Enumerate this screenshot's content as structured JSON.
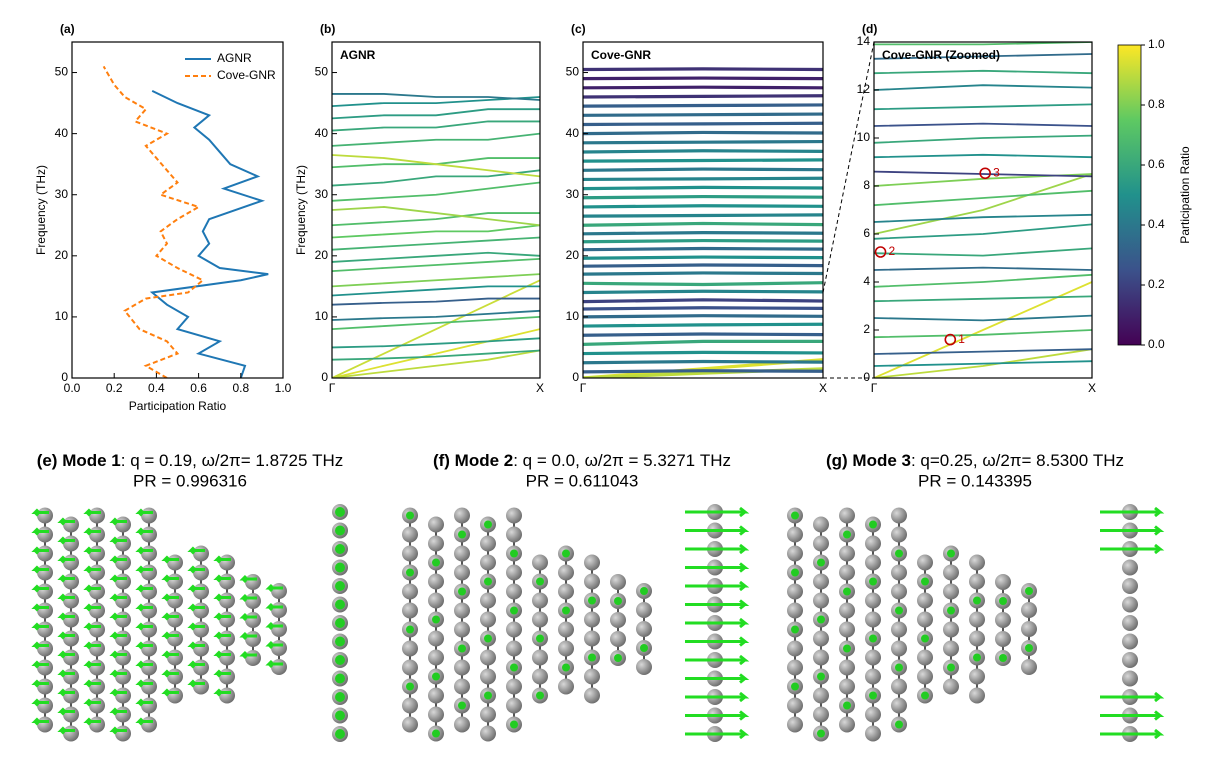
{
  "chart_data": [
    {
      "type": "line",
      "panel": "(a)",
      "xlabel": "Participation Ratio",
      "ylabel": "Frequency (THz)",
      "xlim": [
        0,
        1
      ],
      "xticks": [
        {
          "value": 0,
          "label": "0.0"
        },
        0.2,
        0.4,
        0.6,
        0.8,
        {
          "value": 1,
          "label": "1.0"
        }
      ],
      "ylim": [
        0,
        55
      ],
      "yticks": [
        0,
        10,
        20,
        30,
        40,
        50
      ],
      "legend": "upper right",
      "series": [
        {
          "name": "AGNR",
          "color": "#1f77b4",
          "linestyle": "solid",
          "x": [
            0.8,
            0.82,
            0.6,
            0.7,
            0.5,
            0.55,
            0.45,
            0.38,
            0.8,
            0.93,
            0.7,
            0.6,
            0.65,
            0.62,
            0.65,
            0.9,
            0.72,
            0.88,
            0.75,
            0.7,
            0.65,
            0.58,
            0.65,
            0.5,
            0.38
          ],
          "values": [
            0,
            2,
            4,
            6,
            8,
            10,
            12,
            14,
            16,
            17,
            18,
            20,
            22,
            24,
            26,
            29,
            31,
            33,
            35,
            37,
            39,
            41,
            43,
            45,
            47
          ]
        },
        {
          "name": "Cove-GNR",
          "color": "#ff7f0e",
          "linestyle": "dashed",
          "x": [
            0.45,
            0.35,
            0.5,
            0.45,
            0.32,
            0.25,
            0.35,
            0.55,
            0.62,
            0.5,
            0.4,
            0.45,
            0.42,
            0.5,
            0.6,
            0.42,
            0.5,
            0.45,
            0.4,
            0.35,
            0.45,
            0.3,
            0.35,
            0.25,
            0.2,
            0.15
          ],
          "values": [
            0,
            2,
            4,
            6,
            8,
            11,
            13,
            14,
            16,
            18,
            20,
            22,
            24,
            26,
            28,
            30,
            32,
            34,
            36,
            38,
            40,
            42,
            44,
            46,
            48,
            51
          ]
        }
      ]
    },
    {
      "type": "bands",
      "panel": "(b)",
      "title": "AGNR",
      "ylabel": "Frequency (THz)",
      "xlim": [
        0,
        1
      ],
      "xticks": [
        {
          "value": 0,
          "label": "Γ"
        },
        {
          "value": 1,
          "label": "X"
        }
      ],
      "ylim": [
        0,
        55
      ],
      "yticks": [
        0,
        10,
        20,
        30,
        40,
        50
      ],
      "x": [
        0,
        0.25,
        0.5,
        0.75,
        1
      ],
      "series": [
        {
          "pr": 0.95,
          "values": [
            0,
            2,
            4,
            6,
            8
          ]
        },
        {
          "pr": 0.9,
          "values": [
            0,
            1,
            2,
            3,
            4.5
          ]
        },
        {
          "pr": 0.92,
          "values": [
            0,
            4,
            8,
            12,
            16
          ]
        },
        {
          "pr": 0.6,
          "values": [
            3,
            3.2,
            3.5,
            4,
            4.5
          ]
        },
        {
          "pr": 0.55,
          "values": [
            5,
            5.2,
            5.6,
            6,
            6.5
          ]
        },
        {
          "pr": 0.7,
          "values": [
            8,
            8.5,
            9,
            9.5,
            10
          ]
        },
        {
          "pr": 0.4,
          "values": [
            9.5,
            9.8,
            10,
            10.5,
            11
          ]
        },
        {
          "pr": 0.3,
          "values": [
            12,
            12.3,
            12.5,
            13,
            13
          ]
        },
        {
          "pr": 0.5,
          "values": [
            13.5,
            14,
            14.5,
            15,
            15
          ]
        },
        {
          "pr": 0.8,
          "values": [
            15,
            15.5,
            16,
            16.5,
            17
          ]
        },
        {
          "pr": 0.7,
          "values": [
            17.5,
            18,
            18.5,
            19,
            19.5
          ]
        },
        {
          "pr": 0.6,
          "values": [
            19,
            19.5,
            20,
            20.5,
            20
          ]
        },
        {
          "pr": 0.65,
          "values": [
            21,
            21.5,
            22,
            22.5,
            23
          ]
        },
        {
          "pr": 0.75,
          "values": [
            23,
            23.5,
            24,
            24,
            25
          ]
        },
        {
          "pr": 0.7,
          "values": [
            25,
            25.5,
            26,
            27,
            27
          ]
        },
        {
          "pr": 0.85,
          "values": [
            27.5,
            28,
            27,
            26,
            25
          ]
        },
        {
          "pr": 0.7,
          "values": [
            29,
            29.5,
            30,
            31,
            32
          ]
        },
        {
          "pr": 0.6,
          "values": [
            31.5,
            32,
            33,
            33,
            34
          ]
        },
        {
          "pr": 0.7,
          "values": [
            34.5,
            35,
            35,
            36,
            36
          ]
        },
        {
          "pr": 0.9,
          "values": [
            36.5,
            36,
            35,
            34,
            33
          ]
        },
        {
          "pr": 0.65,
          "values": [
            38,
            38.5,
            39,
            39,
            40
          ]
        },
        {
          "pr": 0.6,
          "values": [
            40.5,
            41,
            41,
            42,
            42
          ]
        },
        {
          "pr": 0.55,
          "values": [
            42.5,
            43,
            43,
            44,
            44
          ]
        },
        {
          "pr": 0.5,
          "values": [
            44.5,
            45,
            45,
            45.5,
            46
          ]
        },
        {
          "pr": 0.4,
          "values": [
            46.5,
            46.5,
            46,
            46,
            45.5
          ]
        }
      ]
    },
    {
      "type": "bands",
      "panel": "(c)",
      "title": "Cove-GNR",
      "xlim": [
        0,
        1
      ],
      "xticks": [
        {
          "value": 0,
          "label": "Γ"
        },
        {
          "value": 1,
          "label": "X"
        }
      ],
      "ylim": [
        0,
        55
      ],
      "yticks": [
        0,
        10,
        20,
        30,
        40,
        50
      ],
      "x": [
        0,
        0.5,
        1
      ],
      "series": [
        {
          "pr": 0.95,
          "values": [
            0,
            1.5,
            3
          ]
        },
        {
          "pr": 0.9,
          "values": [
            0,
            0.8,
            1.5
          ]
        },
        {
          "pr": 0.3,
          "values": [
            1,
            1.2,
            1.1
          ]
        },
        {
          "pr": 0.4,
          "values": [
            2.5,
            2.7,
            2.6
          ]
        },
        {
          "pr": 0.5,
          "values": [
            4,
            4.2,
            4.1
          ]
        },
        {
          "pr": 0.6,
          "values": [
            5.5,
            6,
            6
          ]
        },
        {
          "pr": 0.3,
          "values": [
            7,
            7.2,
            7.1
          ]
        },
        {
          "pr": 0.5,
          "values": [
            8.5,
            8.7,
            8.8
          ]
        },
        {
          "pr": 0.35,
          "values": [
            10,
            10.2,
            10.1
          ]
        },
        {
          "pr": 0.25,
          "values": [
            11.3,
            11.5,
            11.4
          ]
        },
        {
          "pr": 0.2,
          "values": [
            12.5,
            12.8,
            12.6
          ]
        },
        {
          "pr": 0.45,
          "values": [
            14,
            14.2,
            14.1
          ]
        },
        {
          "pr": 0.6,
          "values": [
            15.5,
            15.3,
            15.6
          ]
        },
        {
          "pr": 0.4,
          "values": [
            17,
            17.2,
            17.1
          ]
        },
        {
          "pr": 0.3,
          "values": [
            18.3,
            18.5,
            18.4
          ]
        },
        {
          "pr": 0.5,
          "values": [
            19.6,
            19.8,
            19.7
          ]
        },
        {
          "pr": 0.35,
          "values": [
            21,
            21.2,
            21.1
          ]
        },
        {
          "pr": 0.55,
          "values": [
            22.3,
            22.5,
            22.4
          ]
        },
        {
          "pr": 0.4,
          "values": [
            23.6,
            23.8,
            23.7
          ]
        },
        {
          "pr": 0.6,
          "values": [
            25,
            25.3,
            25.1
          ]
        },
        {
          "pr": 0.45,
          "values": [
            26.5,
            26.6,
            26.7
          ]
        },
        {
          "pr": 0.5,
          "values": [
            28,
            28.2,
            28.1
          ]
        },
        {
          "pr": 0.55,
          "values": [
            29.5,
            29.7,
            29.6
          ]
        },
        {
          "pr": 0.5,
          "values": [
            31,
            31.2,
            31.1
          ]
        },
        {
          "pr": 0.45,
          "values": [
            32.5,
            32.6,
            32.7
          ]
        },
        {
          "pr": 0.4,
          "values": [
            34,
            34.2,
            34.1
          ]
        },
        {
          "pr": 0.5,
          "values": [
            35.5,
            35.6,
            35.7
          ]
        },
        {
          "pr": 0.45,
          "values": [
            37,
            37.2,
            37.1
          ]
        },
        {
          "pr": 0.4,
          "values": [
            38.5,
            38.6,
            38.7
          ]
        },
        {
          "pr": 0.35,
          "values": [
            40,
            40.2,
            40.1
          ]
        },
        {
          "pr": 0.3,
          "values": [
            41.5,
            41.6,
            41.7
          ]
        },
        {
          "pr": 0.35,
          "values": [
            43,
            43.1,
            43.2
          ]
        },
        {
          "pr": 0.3,
          "values": [
            44.5,
            44.6,
            44.7
          ]
        },
        {
          "pr": 0.15,
          "values": [
            46,
            46.1,
            46.2
          ]
        },
        {
          "pr": 0.1,
          "values": [
            47.5,
            47.6,
            47.5
          ]
        },
        {
          "pr": 0.1,
          "values": [
            49,
            49.1,
            49
          ]
        },
        {
          "pr": 0.15,
          "values": [
            50.5,
            50.6,
            50.5
          ]
        }
      ]
    },
    {
      "type": "bands",
      "panel": "(d)",
      "title": "Cove-GNR (Zoomed)",
      "xlim": [
        0,
        1
      ],
      "xticks": [
        {
          "value": 0,
          "label": "Γ"
        },
        {
          "value": 1,
          "label": "X"
        }
      ],
      "ylim": [
        0,
        14
      ],
      "yticks": [
        0,
        2,
        4,
        6,
        8,
        10,
        12,
        14
      ],
      "x": [
        0,
        0.5,
        1
      ],
      "series": [
        {
          "pr": 0.95,
          "values": [
            0,
            2,
            4
          ]
        },
        {
          "pr": 0.9,
          "values": [
            0,
            0.5,
            1.2
          ]
        },
        {
          "pr": 0.5,
          "values": [
            0.5,
            0.6,
            0.7
          ]
        },
        {
          "pr": 0.3,
          "values": [
            1,
            1.1,
            1.2
          ]
        },
        {
          "pr": 0.7,
          "values": [
            1.7,
            1.8,
            2
          ]
        },
        {
          "pr": 0.4,
          "values": [
            2.5,
            2.4,
            2.6
          ]
        },
        {
          "pr": 0.6,
          "values": [
            3.2,
            3.3,
            3.4
          ]
        },
        {
          "pr": 0.7,
          "values": [
            3.8,
            4,
            4.3
          ]
        },
        {
          "pr": 0.35,
          "values": [
            4.5,
            4.6,
            4.5
          ]
        },
        {
          "pr": 0.6,
          "values": [
            5.2,
            5.1,
            5.4
          ]
        },
        {
          "pr": 0.55,
          "values": [
            5.8,
            6,
            6.4
          ]
        },
        {
          "pr": 0.85,
          "values": [
            6,
            7,
            8.5
          ]
        },
        {
          "pr": 0.45,
          "values": [
            6.5,
            6.7,
            6.8
          ]
        },
        {
          "pr": 0.7,
          "values": [
            7.2,
            7.5,
            7.8
          ]
        },
        {
          "pr": 0.8,
          "values": [
            8,
            8.3,
            8.5
          ]
        },
        {
          "pr": 0.2,
          "values": [
            8.6,
            8.5,
            8.4
          ]
        },
        {
          "pr": 0.5,
          "values": [
            9.2,
            9.3,
            9.2
          ]
        },
        {
          "pr": 0.6,
          "values": [
            9.8,
            10,
            10.1
          ]
        },
        {
          "pr": 0.25,
          "values": [
            10.5,
            10.6,
            10.5
          ]
        },
        {
          "pr": 0.55,
          "values": [
            11.2,
            11.3,
            11.4
          ]
        },
        {
          "pr": 0.45,
          "values": [
            12,
            12.2,
            12.1
          ]
        },
        {
          "pr": 0.6,
          "values": [
            12.7,
            12.8,
            12.7
          ]
        },
        {
          "pr": 0.35,
          "values": [
            13.3,
            13.4,
            13.5
          ]
        },
        {
          "pr": 0.7,
          "values": [
            13.9,
            13.9,
            14
          ]
        }
      ],
      "annotations": [
        {
          "label": "1",
          "x": 0.35,
          "y": 1.6
        },
        {
          "label": "2",
          "x": 0.03,
          "y": 5.25
        },
        {
          "label": "3",
          "x": 0.51,
          "y": 8.53
        }
      ]
    },
    {
      "type": "colorbar",
      "ylabel": "Participation Ratio",
      "colormap": "viridis",
      "ylim": [
        0,
        1
      ],
      "yticks": [
        {
          "value": 0,
          "label": "0.0"
        },
        0.2,
        0.4,
        0.6,
        0.8,
        {
          "value": 1,
          "label": "1.0"
        }
      ]
    }
  ],
  "modes": [
    {
      "label": "(e)",
      "name": "Mode 1",
      "params": ": q = 0.19, ω/2π= 1.8725 THz",
      "pr": "PR = 0.996316"
    },
    {
      "label": "(f)",
      "name": "Mode 2",
      "params": ": q = 0.0, ω/2π = 5.3271 THz",
      "pr": "PR = 0.611043"
    },
    {
      "label": "(g)",
      "name": "Mode 3",
      "params": ": q=0.25, ω/2π= 8.5300 THz",
      "pr": "PR = 0.143395"
    }
  ]
}
